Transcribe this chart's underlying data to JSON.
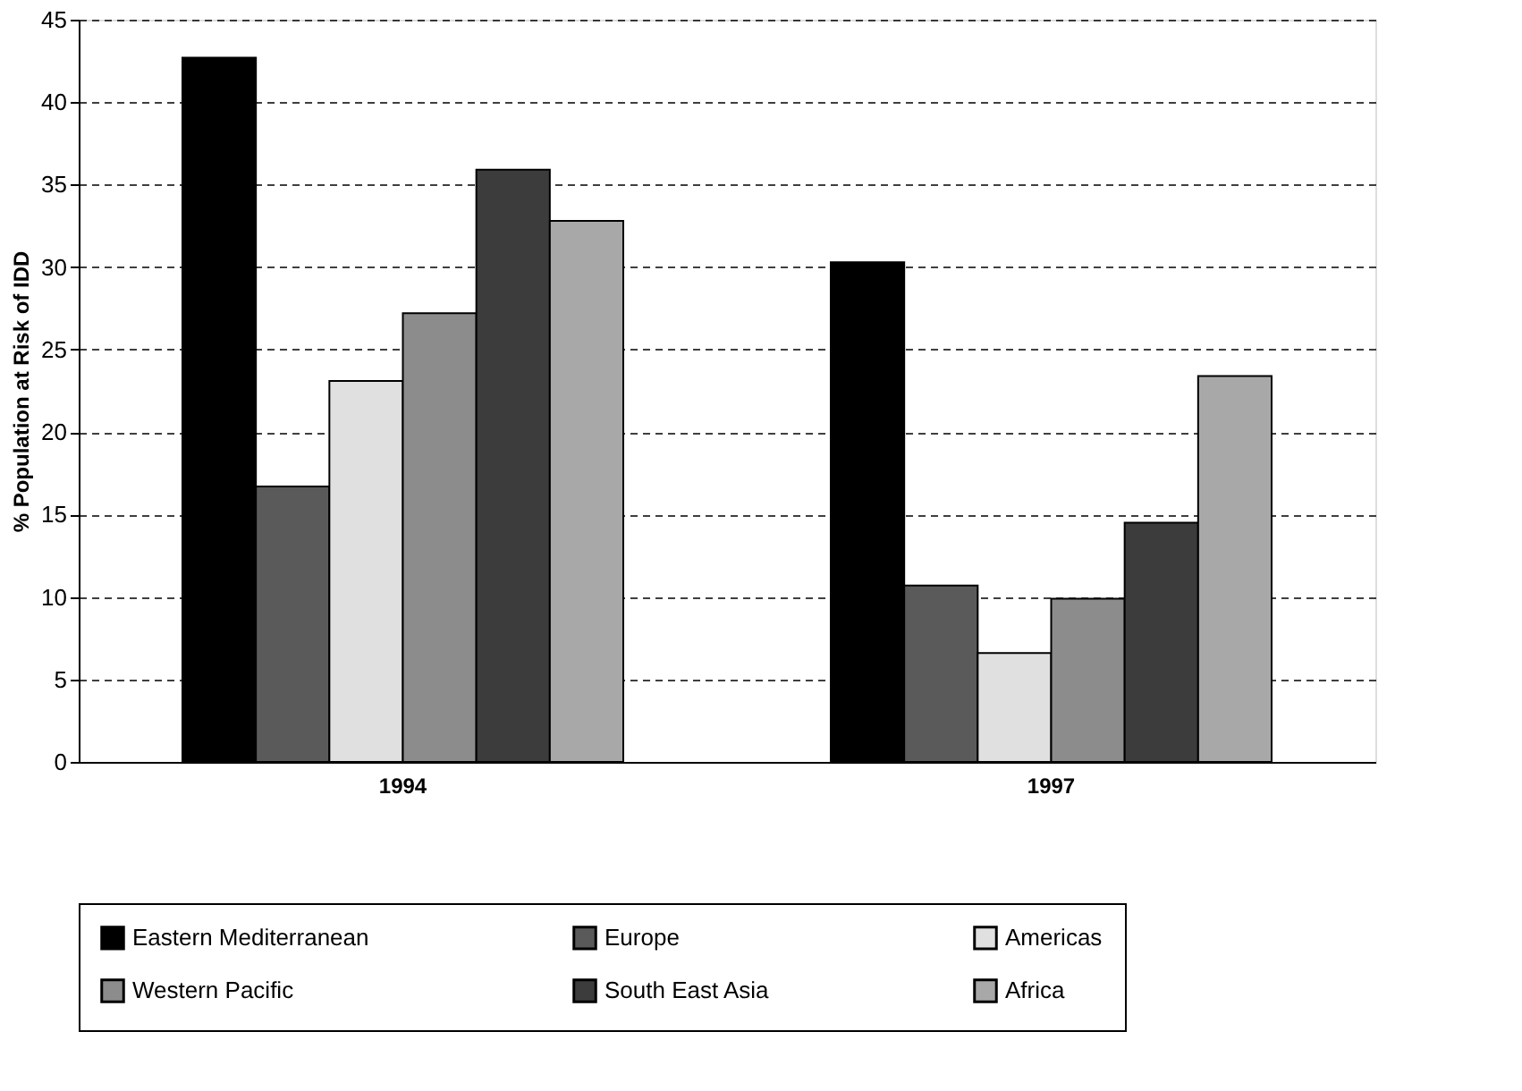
{
  "chart_data": {
    "type": "bar",
    "ylabel": "% Population at Risk of IDD",
    "categories": [
      "1994",
      "1997"
    ],
    "series": [
      {
        "name": "Eastern Mediterranean",
        "color": "#000000",
        "values": [
          42.7,
          30.3
        ]
      },
      {
        "name": "Europe",
        "color": "#5a5a5a",
        "values": [
          16.7,
          10.7
        ]
      },
      {
        "name": "Americas",
        "color": "#e0e0e0",
        "values": [
          23.1,
          6.6
        ]
      },
      {
        "name": "Western Pacific",
        "color": "#8c8c8c",
        "values": [
          27.2,
          9.9
        ]
      },
      {
        "name": "South East Asia",
        "color": "#3c3c3c",
        "values": [
          35.9,
          14.5
        ]
      },
      {
        "name": "Africa",
        "color": "#a8a8a8",
        "values": [
          32.8,
          23.4
        ]
      }
    ],
    "ylim": [
      0,
      45
    ],
    "yticks": [
      0,
      5,
      10,
      15,
      20,
      25,
      30,
      35,
      40,
      45
    ],
    "grid": "y",
    "legend": "bottom"
  }
}
